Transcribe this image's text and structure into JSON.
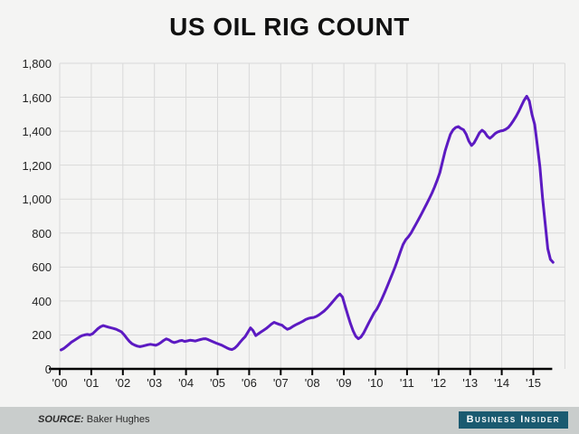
{
  "title": "US OIL RIG COUNT",
  "footer": {
    "source_label": "SOURCE:",
    "source_value": "Baker Hughes",
    "brand": "Business Insider"
  },
  "colors": {
    "background": "#f4f4f3",
    "grid": "#d9d9d9",
    "axis": "#000000",
    "line": "#5c1ac2",
    "footer_bg": "#c9cdcc",
    "brand_bg": "#1a5a70"
  },
  "chart_data": {
    "type": "line",
    "title": "US OIL RIG COUNT",
    "xlabel": "",
    "ylabel": "",
    "ylim": [
      0,
      1800
    ],
    "y_tick_step": 200,
    "y_tick_labels": [
      "0",
      "200",
      "400",
      "600",
      "800",
      "1,000",
      "1,200",
      "1,400",
      "1,600",
      "1,800"
    ],
    "x_tick_labels": [
      "'00",
      "'01",
      "'02",
      "'03",
      "'04",
      "'05",
      "'06",
      "'07",
      "'08",
      "'09",
      "'10",
      "'11",
      "'12",
      "'13",
      "'14",
      "'15"
    ],
    "x_start_year": 2000,
    "points_per_year": 12,
    "grid": "on",
    "legend": "none",
    "source": "Baker Hughes",
    "series": [
      {
        "name": "US oil rig count",
        "values": [
          112,
          120,
          132,
          145,
          158,
          168,
          178,
          188,
          196,
          200,
          203,
          200,
          207,
          222,
          237,
          248,
          255,
          251,
          246,
          242,
          238,
          233,
          226,
          218,
          200,
          180,
          162,
          148,
          140,
          134,
          131,
          134,
          138,
          142,
          145,
          142,
          139,
          146,
          156,
          168,
          177,
          171,
          161,
          155,
          159,
          165,
          168,
          162,
          165,
          169,
          167,
          164,
          169,
          173,
          177,
          178,
          172,
          165,
          158,
          152,
          146,
          140,
          132,
          124,
          117,
          114,
          122,
          137,
          156,
          174,
          190,
          215,
          242,
          225,
          196,
          207,
          218,
          228,
          238,
          251,
          264,
          274,
          268,
          262,
          257,
          244,
          233,
          239,
          249,
          258,
          266,
          273,
          281,
          291,
          297,
          301,
          303,
          309,
          318,
          329,
          341,
          356,
          373,
          391,
          409,
          427,
          441,
          423,
          368,
          316,
          267,
          224,
          192,
          178,
          188,
          211,
          241,
          272,
          301,
          330,
          352,
          382,
          415,
          450,
          487,
          525,
          563,
          602,
          645,
          690,
          732,
          760,
          778,
          800,
          828,
          856,
          884,
          913,
          943,
          973,
          1004,
          1036,
          1072,
          1112,
          1158,
          1222,
          1285,
          1335,
          1382,
          1408,
          1422,
          1427,
          1416,
          1408,
          1382,
          1342,
          1316,
          1332,
          1360,
          1390,
          1406,
          1394,
          1371,
          1358,
          1371,
          1386,
          1396,
          1401,
          1404,
          1411,
          1422,
          1441,
          1464,
          1489,
          1518,
          1550,
          1582,
          1606,
          1578,
          1499,
          1440,
          1318,
          1190,
          1008,
          858,
          708,
          645,
          628
        ]
      }
    ]
  }
}
